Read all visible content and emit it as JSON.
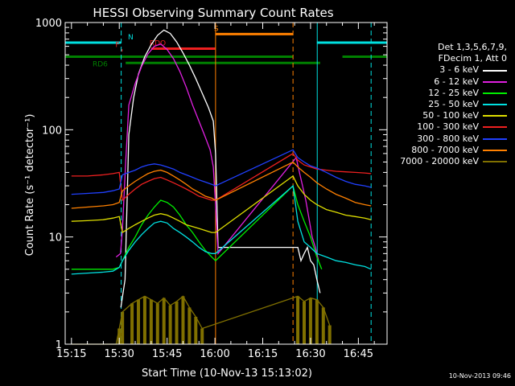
{
  "chart_data": {
    "type": "line",
    "title": "HESSI Observing Summary Count Rates",
    "xlabel": "Start Time (10-Nov-13 15:13:02)",
    "ylabel": "Count Rate (s⁻¹ detector⁻¹)",
    "x_ticks": [
      "15:15",
      "15:30",
      "15:45",
      "16:00",
      "16:15",
      "16:30",
      "16:45"
    ],
    "x_tick_minutes": [
      15,
      30,
      45,
      60,
      75,
      90,
      105
    ],
    "xlim_minutes": [
      13.03,
      114
    ],
    "y_scale": "log",
    "ylim": [
      1,
      1000
    ],
    "y_ticks": [
      1,
      10,
      100,
      1000
    ],
    "y_tick_labels": [
      "1",
      "10",
      "100",
      "1000"
    ],
    "legend_header": [
      "Det 1,3,5,6,7,9,",
      "FDecim 1, Att 0"
    ],
    "legend_placement": "right",
    "series": [
      {
        "name": "3 - 6 keV",
        "color": "#ffffff",
        "x": [
          30.5,
          31.8,
          33,
          34.5,
          36,
          38,
          40,
          42,
          44,
          46,
          48,
          50,
          52,
          54,
          56,
          58,
          59.5,
          60.2,
          61,
          86,
          87,
          88,
          89,
          90,
          91,
          92,
          93
        ],
        "y": [
          2.2,
          4,
          90,
          200,
          330,
          480,
          620,
          760,
          850,
          790,
          660,
          520,
          400,
          300,
          220,
          160,
          120,
          60,
          8,
          8,
          6,
          7,
          8,
          6,
          5.5,
          4,
          3
        ]
      },
      {
        "name": "6 - 12 keV",
        "color": "#e020e0",
        "x": [
          29,
          30.4,
          31,
          32,
          33,
          35,
          37,
          39,
          41,
          43,
          45,
          47,
          49,
          51,
          53,
          55,
          57,
          58.5,
          59.5,
          60.2,
          61,
          85.5,
          86.5,
          87.5,
          88.5,
          89.5,
          90.5,
          91.5,
          92.5
        ],
        "y": [
          6.5,
          7,
          12,
          50,
          170,
          270,
          390,
          510,
          600,
          630,
          560,
          460,
          350,
          250,
          170,
          120,
          85,
          65,
          45,
          20,
          7,
          55,
          40,
          30,
          22,
          15,
          10,
          8,
          6
        ]
      },
      {
        "name": "12 - 25 keV",
        "color": "#00ee00",
        "x": [
          15,
          20,
          25,
          28,
          30,
          31,
          33,
          35,
          37,
          39,
          41,
          43,
          45,
          47,
          49,
          51,
          53,
          55,
          57,
          59,
          60.2,
          84.5,
          86,
          88,
          90,
          92,
          93.5
        ],
        "y": [
          5,
          5,
          5,
          5,
          5.2,
          6,
          8,
          10,
          13,
          16,
          19,
          22,
          21,
          19,
          16,
          13,
          11,
          9,
          7.5,
          6.5,
          6,
          30,
          20,
          14,
          10,
          6.5,
          5
        ]
      },
      {
        "name": "25 - 50 keV",
        "color": "#00e0e0",
        "x": [
          15,
          20,
          25,
          28,
          30,
          31,
          33,
          35,
          37,
          39,
          41,
          43,
          45,
          47,
          49,
          51,
          53,
          55,
          57,
          59,
          60.2,
          84.5,
          86,
          88,
          90,
          92,
          95,
          98,
          101,
          104,
          107,
          109
        ],
        "y": [
          4.5,
          4.6,
          4.7,
          4.8,
          5.2,
          6,
          7.5,
          9,
          10.5,
          12,
          13.5,
          14,
          13.5,
          12,
          11,
          10,
          9,
          8,
          7.3,
          7,
          7,
          30,
          14,
          9,
          8,
          7,
          6.5,
          6,
          5.8,
          5.5,
          5.3,
          5
        ]
      },
      {
        "name": "50 - 100 keV",
        "color": "#dddd00",
        "x": [
          15,
          20,
          25,
          28,
          30,
          31,
          33,
          35,
          37,
          39,
          41,
          43,
          45,
          47,
          49,
          51,
          53,
          55,
          57,
          59,
          60.2,
          84.5,
          86,
          88,
          90,
          92,
          95,
          98,
          101,
          104,
          107,
          109
        ],
        "y": [
          14,
          14.2,
          14.5,
          15,
          15.5,
          11,
          12,
          13,
          14,
          15,
          16,
          16.5,
          16,
          15,
          14,
          13,
          12.5,
          12,
          11.5,
          11,
          11,
          37,
          30,
          25,
          22,
          20,
          18,
          17,
          16,
          15.5,
          15,
          14.5
        ]
      },
      {
        "name": "100 - 300 keV",
        "color": "#ee2020",
        "x": [
          15,
          20,
          25,
          28,
          30,
          31,
          33,
          35,
          37,
          39,
          41,
          43,
          45,
          47,
          49,
          51,
          53,
          55,
          57,
          59,
          60.2,
          84.5,
          86,
          88,
          90,
          92,
          95,
          98,
          101,
          104,
          107,
          109
        ],
        "y": [
          37,
          37,
          38,
          39,
          40,
          22,
          25,
          28,
          31,
          33,
          35,
          36,
          34,
          32,
          30,
          28,
          26,
          24,
          23,
          22,
          22,
          60,
          52,
          47,
          45,
          43,
          42,
          41,
          40.5,
          40,
          39.5,
          39
        ]
      },
      {
        "name": "300 - 800 keV",
        "color": "#2040ff",
        "x": [
          15,
          20,
          25,
          28,
          30,
          31,
          33,
          35,
          37,
          39,
          41,
          43,
          45,
          47,
          49,
          51,
          53,
          55,
          57,
          59,
          60.2,
          84.5,
          86,
          88,
          90,
          92,
          95,
          98,
          101,
          104,
          107,
          109
        ],
        "y": [
          25,
          25.5,
          26,
          27,
          28,
          38,
          40,
          42,
          45,
          47,
          48,
          47,
          45,
          43,
          40,
          38,
          36,
          34,
          32.5,
          31,
          30,
          65,
          55,
          50,
          46,
          44,
          40,
          36,
          33,
          31,
          30,
          29
        ]
      },
      {
        "name": "800 - 7000 keV",
        "color": "#ff8000",
        "x": [
          15,
          20,
          25,
          28,
          30,
          31,
          33,
          35,
          37,
          39,
          41,
          43,
          45,
          47,
          49,
          51,
          53,
          55,
          57,
          59,
          60.2,
          84.5,
          86,
          88,
          90,
          92,
          95,
          98,
          101,
          104,
          107,
          109
        ],
        "y": [
          18.5,
          19,
          19.5,
          20,
          21,
          27,
          30,
          33,
          36,
          39,
          41,
          42,
          40,
          37,
          34,
          31,
          28,
          26,
          24,
          23,
          22,
          50,
          45,
          40,
          36,
          32,
          28,
          25,
          23,
          21,
          20,
          19.5
        ]
      },
      {
        "name": "7000 - 20000 keV",
        "color": "#807000",
        "x": [
          15,
          28,
          29,
          30,
          31,
          34,
          36,
          38,
          40,
          42,
          44,
          46,
          48,
          50,
          52,
          54,
          56,
          86,
          88,
          90,
          92,
          94,
          96
        ],
        "y": [
          1,
          1,
          1,
          1.4,
          2,
          2.4,
          2.6,
          2.8,
          2.6,
          2.4,
          2.7,
          2.3,
          2.5,
          2.8,
          2.2,
          1.8,
          1.4,
          2.8,
          2.5,
          2.7,
          2.6,
          2.2,
          1.5
        ]
      }
    ],
    "flags": [
      {
        "label": "N",
        "color": "#00e0e0",
        "value": 650,
        "segments": [
          [
            13.03,
            30.5
          ],
          [
            92,
            114
          ]
        ]
      },
      {
        "label": "F",
        "color": "#ee2020",
        "value": 550,
        "segments": [
          [
            30.6,
            31
          ]
        ]
      },
      {
        "label": "RDO",
        "color": "#ee2020",
        "value": 570,
        "segments": [
          [
            40,
            60.2
          ]
        ]
      },
      {
        "label": "S",
        "color": "#ff8000",
        "value": 780,
        "segments": [
          [
            60.2,
            84.5
          ]
        ]
      },
      {
        "label": "RD6",
        "color": "#008000",
        "value": 480,
        "segments": [
          [
            13.03,
            84.5
          ],
          [
            100,
            114
          ]
        ]
      },
      {
        "label": "",
        "color": "#008000",
        "value": 420,
        "segments": [
          [
            32,
            84.5
          ],
          [
            84.5,
            93
          ]
        ]
      }
    ],
    "vlines": [
      {
        "x": 30.6,
        "color": "#00e0e0",
        "style": "dashed"
      },
      {
        "x": 60.2,
        "color": "#ff8000",
        "style": "solid"
      },
      {
        "x": 84.5,
        "color": "#ff8000",
        "style": "dashed"
      },
      {
        "x": 92.1,
        "color": "#00e0e0",
        "style": "solid"
      },
      {
        "x": 109,
        "color": "#00e0e0",
        "style": "dashed"
      }
    ]
  },
  "timestamp": "10-Nov-2013 09:46"
}
